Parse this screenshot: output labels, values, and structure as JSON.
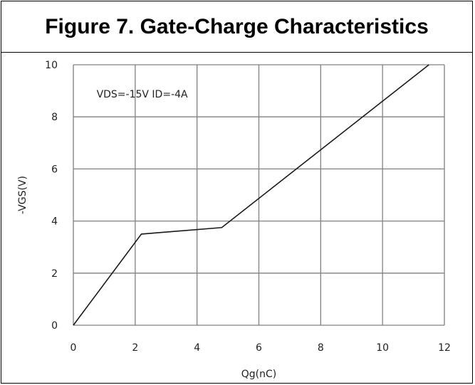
{
  "chart_data": {
    "type": "line",
    "title": "Figure 7. Gate-Charge Characteristics",
    "xlabel": "Qg(nC)",
    "ylabel": "-VGS(V)",
    "xlim": [
      0,
      12
    ],
    "ylim": [
      0,
      10
    ],
    "xticks": [
      "0",
      "2",
      "4",
      "6",
      "8",
      "10",
      "12"
    ],
    "yticks": [
      "0",
      "2",
      "4",
      "6",
      "8",
      "10"
    ],
    "grid": true,
    "annotation": "VDS=-15V ID=-4A",
    "series": [
      {
        "x": [
          0,
          2.2,
          4.8,
          11.5
        ],
        "y": [
          0,
          3.5,
          3.75,
          10
        ]
      }
    ]
  },
  "colors": {
    "line": "#1a1a1a",
    "grid": "#808080",
    "axis": "#555555"
  }
}
